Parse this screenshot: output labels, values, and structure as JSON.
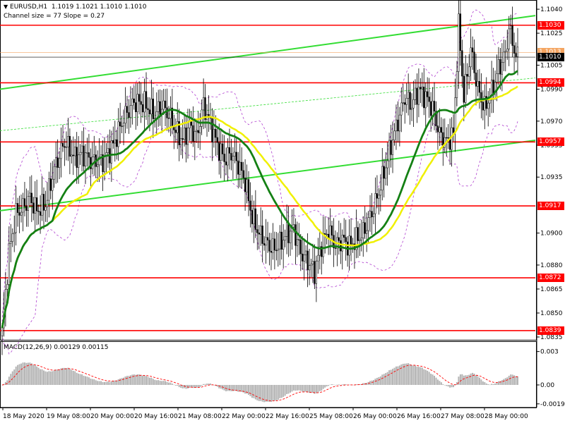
{
  "header": {
    "symbol": "EURUSD,H1",
    "ohlc": "1.1019 1.1021 1.1010 1.1010",
    "channel_info": "Channel size = 77  Slope = 0.27"
  },
  "colors": {
    "level_line": "#ff0000",
    "channel_line": "#33dd33",
    "ma_fast": "#148014",
    "ma_slow": "#f0f000",
    "bands": "#b040d0",
    "candles": "#000000",
    "histogram": "#b4b4b4",
    "signal": "#ff0000",
    "current_price_bg": "#000000"
  },
  "chart_data": [
    {
      "type": "candlestick",
      "symbol": "EURUSD",
      "timeframe": "H1",
      "ylim": [
        1.0835,
        1.1044
      ],
      "y_ticks": [
        "1.1040",
        "1.1025",
        "1.1005",
        "1.0990",
        "1.0970",
        "1.0955",
        "1.0935",
        "1.0900",
        "1.0880",
        "1.0865",
        "1.0850",
        "1.0835"
      ],
      "x_ticks": [
        "18 May 2020",
        "19 May 08:00",
        "20 May 00:00",
        "20 May 16:00",
        "21 May 08:00",
        "22 May 00:00",
        "22 May 16:00",
        "25 May 08:00",
        "26 May 00:00",
        "26 May 16:00",
        "27 May 08:00",
        "28 May 00:00"
      ],
      "levels": [
        {
          "value": 1.103,
          "label": "1.1030"
        },
        {
          "value": 1.0994,
          "label": "1.0994"
        },
        {
          "value": 1.0957,
          "label": "1.0957"
        },
        {
          "value": 1.0917,
          "label": "1.0917"
        },
        {
          "value": 1.0872,
          "label": "1.0872"
        },
        {
          "value": 1.0839,
          "label": "1.0839"
        }
      ],
      "price_tags": [
        {
          "value": 1.1013,
          "label": "1.1013",
          "color": "#f4a460"
        },
        {
          "value": 1.101,
          "label": "1.1010",
          "color": "#000000"
        }
      ],
      "anchor_closes": [
        [
          0,
          1.0838
        ],
        [
          4,
          1.0888
        ],
        [
          8,
          1.0912
        ],
        [
          12,
          1.0916
        ],
        [
          16,
          1.0922
        ],
        [
          20,
          1.0914
        ],
        [
          25,
          1.0918
        ],
        [
          30,
          1.094
        ],
        [
          36,
          1.0957
        ],
        [
          42,
          1.0947
        ],
        [
          46,
          1.095
        ],
        [
          52,
          1.0945
        ],
        [
          58,
          1.0945
        ],
        [
          64,
          1.0955
        ],
        [
          70,
          1.0972
        ],
        [
          76,
          1.0982
        ],
        [
          82,
          1.0981
        ],
        [
          88,
          1.0974
        ],
        [
          92,
          1.098
        ],
        [
          96,
          1.0974
        ],
        [
          100,
          1.0964
        ],
        [
          104,
          1.0958
        ],
        [
          108,
          1.0967
        ],
        [
          112,
          1.096
        ],
        [
          116,
          1.098
        ],
        [
          120,
          1.0968
        ],
        [
          124,
          1.0955
        ],
        [
          128,
          1.0946
        ],
        [
          132,
          1.095
        ],
        [
          136,
          1.0943
        ],
        [
          140,
          1.0932
        ],
        [
          144,
          1.091
        ],
        [
          148,
          1.09
        ],
        [
          152,
          1.0894
        ],
        [
          156,
          1.089
        ],
        [
          160,
          1.0893
        ],
        [
          164,
          1.09
        ],
        [
          168,
          1.0902
        ],
        [
          172,
          1.0888
        ],
        [
          176,
          1.0882
        ],
        [
          180,
          1.0876
        ],
        [
          184,
          1.0893
        ],
        [
          188,
          1.0902
        ],
        [
          192,
          1.0892
        ],
        [
          196,
          1.0896
        ],
        [
          200,
          1.0892
        ],
        [
          204,
          1.0896
        ],
        [
          208,
          1.09
        ],
        [
          212,
          1.091
        ],
        [
          216,
          1.0922
        ],
        [
          220,
          1.0938
        ],
        [
          224,
          1.0955
        ],
        [
          228,
          1.097
        ],
        [
          232,
          1.0985
        ],
        [
          236,
          1.098
        ],
        [
          240,
          1.099
        ],
        [
          244,
          1.0985
        ],
        [
          248,
          1.0978
        ],
        [
          252,
          1.0962
        ],
        [
          256,
          1.0957
        ],
        [
          260,
          1.0962
        ],
        [
          263,
          1.103
        ],
        [
          266,
          1.0985
        ],
        [
          270,
          1.1015
        ],
        [
          274,
          1.099
        ],
        [
          278,
          1.0978
        ],
        [
          282,
          1.0988
        ],
        [
          286,
          1.1003
        ],
        [
          290,
          1.1012
        ],
        [
          292,
          1.1028
        ],
        [
          294,
          1.102
        ],
        [
          296,
          1.101
        ]
      ]
    },
    {
      "type": "macd",
      "label": "MACD(12,26,9) 0.00129 0.00115",
      "ylim": [
        -0.0019,
        0.0038
      ],
      "y_ticks": [
        "0.003",
        "0.00",
        "-0.00195"
      ]
    }
  ]
}
